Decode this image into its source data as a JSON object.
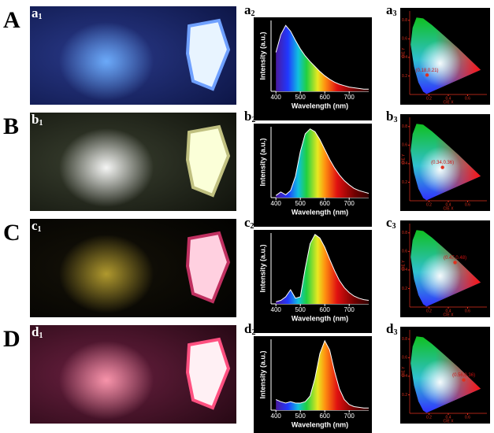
{
  "rows": [
    {
      "letter": "A",
      "panels": [
        {
          "label": "a",
          "sub": "1"
        },
        {
          "label": "a",
          "sub": "2"
        },
        {
          "label": "a",
          "sub": "3"
        }
      ]
    },
    {
      "letter": "B",
      "panels": [
        {
          "label": "b",
          "sub": "1"
        },
        {
          "label": "b",
          "sub": "2"
        },
        {
          "label": "b",
          "sub": "3"
        }
      ]
    },
    {
      "letter": "C",
      "panels": [
        {
          "label": "c",
          "sub": "1"
        },
        {
          "label": "c",
          "sub": "2"
        },
        {
          "label": "c",
          "sub": "3"
        }
      ]
    },
    {
      "letter": "D",
      "panels": [
        {
          "label": "d",
          "sub": "1"
        },
        {
          "label": "d",
          "sub": "2"
        },
        {
          "label": "d",
          "sub": "3"
        }
      ]
    }
  ],
  "chart_data": [
    {
      "type": "line",
      "xlabel": "Wavelength (nm)",
      "ylabel": "Intensity (a.u.)",
      "xlim": [
        380,
        780
      ],
      "xticks": [
        400,
        500,
        600,
        700
      ],
      "ylim": [
        0,
        1
      ],
      "x": [
        400,
        420,
        440,
        460,
        480,
        500,
        520,
        540,
        560,
        580,
        600,
        620,
        640,
        660,
        680,
        700,
        720,
        740,
        760,
        780
      ],
      "series": [
        {
          "color": "#ffffff",
          "values": [
            0.55,
            0.8,
            0.93,
            0.85,
            0.72,
            0.6,
            0.5,
            0.42,
            0.35,
            0.28,
            0.22,
            0.17,
            0.13,
            0.1,
            0.08,
            0.06,
            0.05,
            0.04,
            0.03,
            0.03
          ]
        }
      ]
    },
    {
      "type": "line",
      "xlabel": "Wavelength (nm)",
      "ylabel": "Intensity (a.u.)",
      "xlim": [
        380,
        780
      ],
      "xticks": [
        400,
        500,
        600,
        700
      ],
      "ylim": [
        0,
        1
      ],
      "x": [
        400,
        420,
        440,
        460,
        480,
        500,
        520,
        540,
        560,
        580,
        600,
        620,
        640,
        660,
        680,
        700,
        720,
        740,
        760,
        780
      ],
      "series": [
        {
          "color": "#ffffff",
          "values": [
            0.03,
            0.08,
            0.04,
            0.1,
            0.3,
            0.65,
            0.9,
            0.97,
            0.93,
            0.82,
            0.68,
            0.54,
            0.42,
            0.32,
            0.24,
            0.18,
            0.13,
            0.1,
            0.08,
            0.06
          ]
        }
      ]
    },
    {
      "type": "line",
      "xlabel": "Wavelength (nm)",
      "ylabel": "Intensity (a.u.)",
      "xlim": [
        380,
        780
      ],
      "xticks": [
        400,
        500,
        600,
        700
      ],
      "ylim": [
        0,
        1
      ],
      "x": [
        400,
        420,
        440,
        460,
        480,
        500,
        520,
        540,
        560,
        580,
        600,
        620,
        640,
        660,
        680,
        700,
        720,
        740,
        760,
        780
      ],
      "series": [
        {
          "color": "#ffffff",
          "values": [
            0.03,
            0.05,
            0.1,
            0.2,
            0.08,
            0.1,
            0.5,
            0.85,
            0.98,
            0.93,
            0.8,
            0.63,
            0.47,
            0.33,
            0.23,
            0.16,
            0.11,
            0.08,
            0.06,
            0.05
          ]
        }
      ]
    },
    {
      "type": "line",
      "xlabel": "Wavelength (nm)",
      "ylabel": "Intensity (a.u.)",
      "xlim": [
        380,
        780
      ],
      "xticks": [
        400,
        500,
        600,
        700
      ],
      "ylim": [
        0,
        1
      ],
      "x": [
        400,
        420,
        440,
        460,
        480,
        500,
        520,
        540,
        560,
        580,
        600,
        620,
        640,
        660,
        680,
        700,
        720,
        740,
        760,
        780
      ],
      "series": [
        {
          "color": "#ffffff",
          "values": [
            0.15,
            0.12,
            0.1,
            0.12,
            0.1,
            0.1,
            0.12,
            0.2,
            0.45,
            0.8,
            0.98,
            0.85,
            0.55,
            0.3,
            0.15,
            0.08,
            0.05,
            0.04,
            0.03,
            0.03
          ]
        }
      ]
    },
    {
      "type": "scatter",
      "xlabel": "CIE X",
      "ylabel": "CIE Y",
      "xlim": [
        0,
        0.8
      ],
      "ylim": [
        0,
        0.9
      ],
      "xticks": [
        0.2,
        0.4,
        0.6
      ],
      "yticks": [
        0.2,
        0.4,
        0.6,
        0.8
      ],
      "color": "#e0301e",
      "x": [
        0.18
      ],
      "values": [
        0.21
      ],
      "value_labels": [
        "(0.18,0.21)"
      ]
    },
    {
      "type": "scatter",
      "xlabel": "CIE X",
      "ylabel": "CIE Y",
      "xlim": [
        0,
        0.8
      ],
      "ylim": [
        0,
        0.9
      ],
      "xticks": [
        0.2,
        0.4,
        0.6
      ],
      "yticks": [
        0.2,
        0.4,
        0.6,
        0.8
      ],
      "color": "#e0301e",
      "x": [
        0.34
      ],
      "values": [
        0.36
      ],
      "value_labels": [
        "(0.34,0.36)"
      ]
    },
    {
      "type": "scatter",
      "xlabel": "CIE X",
      "ylabel": "CIE Y",
      "xlim": [
        0,
        0.8
      ],
      "ylim": [
        0,
        0.9
      ],
      "xticks": [
        0.2,
        0.4,
        0.6
      ],
      "yticks": [
        0.2,
        0.4,
        0.6,
        0.8
      ],
      "color": "#e0301e",
      "x": [
        0.47
      ],
      "values": [
        0.48
      ],
      "value_labels": [
        "(0.47,0.48)"
      ]
    },
    {
      "type": "scatter",
      "xlabel": "CIE X",
      "ylabel": "CIE Y",
      "xlim": [
        0,
        0.8
      ],
      "ylim": [
        0,
        0.9
      ],
      "xticks": [
        0.2,
        0.4,
        0.6
      ],
      "yticks": [
        0.2,
        0.4,
        0.6,
        0.8
      ],
      "color": "#e0301e",
      "x": [
        0.56
      ],
      "values": [
        0.36
      ],
      "value_labels": [
        "(0.56,0.36)"
      ]
    }
  ]
}
